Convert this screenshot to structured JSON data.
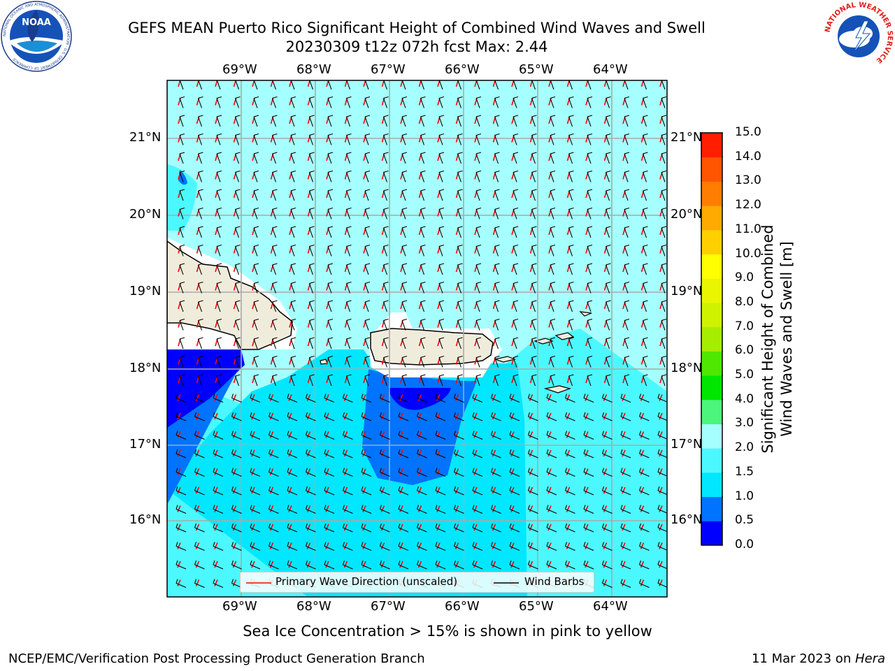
{
  "header": {
    "title_line1": "GEFS MEAN Puerto Rico Significant Height of Combined Wind Waves and Swell",
    "title_line2": "20230309 t12z 072h fcst   Max: 2.44",
    "noaa_logo_text": "NOAA",
    "noaa_ring_text": "NATIONAL OCEANIC AND ATMOSPHERIC ADMINISTRATION · U.S. DEPARTMENT OF COMMERCE",
    "nws_ring_text": "NATIONAL WEATHER SERVICE"
  },
  "map": {
    "lon_labels": [
      "69°W",
      "68°W",
      "67°W",
      "66°W",
      "65°W",
      "64°W"
    ],
    "lat_labels": [
      "21°N",
      "20°N",
      "19°N",
      "18°N",
      "17°N",
      "16°N"
    ],
    "legend": {
      "wave_label": "Primary Wave Direction (unscaled)",
      "barb_label": "Wind Barbs",
      "wave_color": "#ff0000",
      "barb_color": "#000000"
    },
    "land_color": "#efecdc"
  },
  "colorbar": {
    "label_line1": "Significant Height of Combined",
    "label_line2": "Wind Waves and Swell [m]",
    "ticks": [
      "0.0",
      "0.5",
      "1.0",
      "1.5",
      "2.0",
      "3.0",
      "4.0",
      "5.0",
      "6.0",
      "7.0",
      "8.0",
      "9.0",
      "10.0",
      "11.0",
      "12.0",
      "13.0",
      "14.0",
      "15.0"
    ],
    "colors": [
      "#0000ff",
      "#0073ff",
      "#00e7ff",
      "#4cf8ff",
      "#a6ffff",
      "#4cf57c",
      "#00e600",
      "#4ee800",
      "#a6ed00",
      "#cff200",
      "#eaf600",
      "#ffff00",
      "#ffd000",
      "#ffaa00",
      "#ff7d00",
      "#ff5500",
      "#ff1e00"
    ]
  },
  "footer": {
    "sea_ice_note": "Sea Ice Concentration > 15% is shown in pink to yellow",
    "branch": "NCEP/EMC/Verification Post Processing Product Generation Branch",
    "date_prefix": "11 Mar 2023 on ",
    "machine": "Hera"
  }
}
